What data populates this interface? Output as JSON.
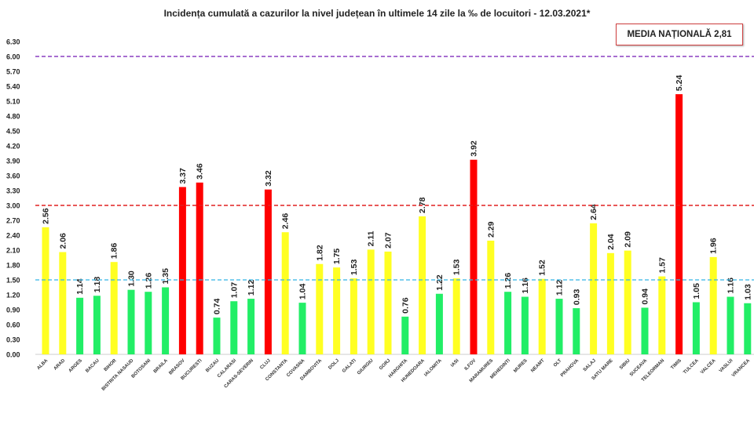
{
  "chart_data": {
    "type": "bar",
    "title": "Incidența cumulată a cazurilor la nivel județean în ultimele 14 zile la ‰ de locuitori - 12.03.2021*",
    "annotation": "MEDIA NAȚIONALĂ  2,81",
    "xlabel": "",
    "ylabel": "",
    "ylim": [
      0,
      6.3
    ],
    "yticks": [
      "0.00",
      "0.30",
      "0.60",
      "0.90",
      "1.20",
      "1.50",
      "1.80",
      "2.10",
      "2.40",
      "2.70",
      "3.00",
      "3.30",
      "3.60",
      "3.90",
      "4.20",
      "4.50",
      "4.80",
      "5.10",
      "5.40",
      "5.70",
      "6.00",
      "6.30"
    ],
    "grid": false,
    "legend": "none",
    "reference_lines": [
      {
        "value": 1.5,
        "color": "#33b5e5"
      },
      {
        "value": 3.0,
        "color": "#e02020"
      },
      {
        "value": 6.0,
        "color": "#8a3fc0"
      }
    ],
    "colors": {
      "low": "#22ee66",
      "medium": "#ffff22",
      "high": "#ff0000"
    },
    "categories": [
      "ALBA",
      "ARAD",
      "ARGES",
      "BACAU",
      "BIHOR",
      "BISTRITA NASAUD",
      "BOTOSANI",
      "BRAILA",
      "BRASOV",
      "BUCURESTI",
      "BUZAU",
      "CALARASI",
      "CARAS-SEVERIN",
      "CLUJ",
      "CONSTANTA",
      "COVASNA",
      "DAMBOVITA",
      "DOLJ",
      "GALATI",
      "GIURGIU",
      "GORJ",
      "HARGHITA",
      "HUNEDOARA",
      "IALOMITA",
      "IASI",
      "ILFOV",
      "MARAMURES",
      "MEHEDINTI",
      "MURES",
      "NEAMT",
      "OLT",
      "PRAHOVA",
      "SALAJ",
      "SATU MARE",
      "SIBIU",
      "SUCEAVA",
      "TELEORMAN",
      "TIMIS",
      "TULCEA",
      "VALCEA",
      "VASLUI",
      "VRANCEA"
    ],
    "values": [
      2.56,
      2.06,
      1.14,
      1.18,
      1.86,
      1.3,
      1.26,
      1.35,
      3.37,
      3.46,
      0.74,
      1.07,
      1.12,
      3.32,
      2.46,
      1.04,
      1.82,
      1.75,
      1.53,
      2.11,
      2.07,
      0.76,
      2.78,
      1.22,
      1.53,
      3.92,
      2.29,
      1.26,
      1.16,
      1.52,
      1.12,
      0.93,
      2.64,
      2.04,
      2.09,
      0.94,
      1.57,
      5.24,
      1.05,
      1.96,
      1.16,
      1.03
    ]
  }
}
